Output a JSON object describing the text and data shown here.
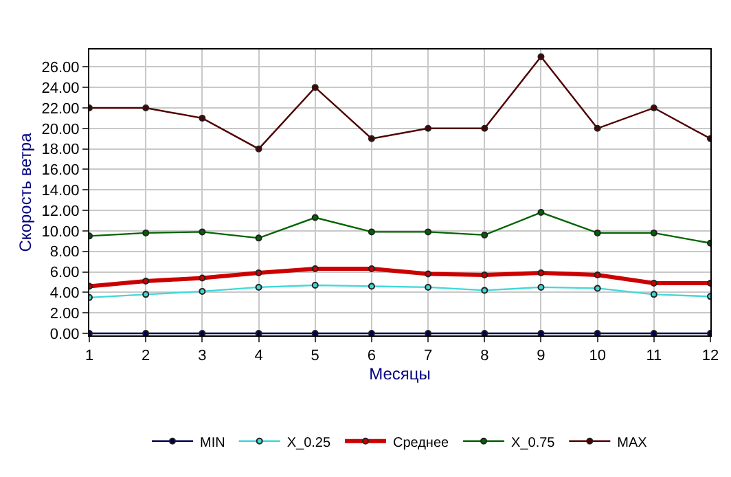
{
  "chart_data": {
    "type": "line",
    "xlabel": "Месяцы",
    "ylabel": "Скорость ветра",
    "x": [
      1,
      2,
      3,
      4,
      5,
      6,
      7,
      8,
      9,
      10,
      11,
      12
    ],
    "series": [
      {
        "name": "MIN",
        "color": "#000050",
        "values": [
          0,
          0,
          0,
          0,
          0,
          0,
          0,
          0,
          0,
          0,
          0,
          0
        ]
      },
      {
        "name": "X_0.25",
        "color": "#40d8d8",
        "values": [
          3.5,
          3.8,
          4.1,
          4.5,
          4.7,
          4.6,
          4.5,
          4.2,
          4.5,
          4.4,
          3.8,
          3.6
        ]
      },
      {
        "name": "Среднее",
        "color": "#cc0000",
        "values": [
          4.6,
          5.1,
          5.4,
          5.9,
          6.3,
          6.3,
          5.8,
          5.7,
          5.9,
          5.7,
          4.9,
          4.9
        ]
      },
      {
        "name": "X_0.75",
        "color": "#006400",
        "values": [
          9.5,
          9.8,
          9.9,
          9.3,
          11.3,
          9.9,
          9.9,
          9.6,
          11.8,
          9.8,
          9.8,
          8.8
        ]
      },
      {
        "name": "MAX",
        "color": "#500000",
        "values": [
          22,
          22,
          21,
          18,
          24,
          19,
          20,
          20,
          27,
          20,
          22,
          19
        ]
      }
    ],
    "xlim": [
      1,
      12
    ],
    "xticks": [
      1,
      2,
      3,
      4,
      5,
      6,
      7,
      8,
      9,
      10,
      11,
      12
    ],
    "ylim": [
      -0.2,
      27.7
    ],
    "yticks": [
      {
        "value": 0,
        "label": "0.00"
      },
      {
        "value": 2,
        "label": "2.00"
      },
      {
        "value": 4,
        "label": "4.00"
      },
      {
        "value": 6,
        "label": "6.00"
      },
      {
        "value": 8,
        "label": "8.00"
      },
      {
        "value": 10,
        "label": "10.00"
      },
      {
        "value": 12,
        "label": "12.00"
      },
      {
        "value": 14,
        "label": "14.00"
      },
      {
        "value": 16,
        "label": "16.00"
      },
      {
        "value": 18,
        "label": "18.00"
      },
      {
        "value": 20,
        "label": "20.00"
      },
      {
        "value": 22,
        "label": "22.00"
      },
      {
        "value": 24,
        "label": "24.00"
      },
      {
        "value": 26,
        "label": "26.00"
      }
    ],
    "grid": true,
    "legend": "bottom",
    "marker": "circle",
    "line_style": "solid"
  }
}
